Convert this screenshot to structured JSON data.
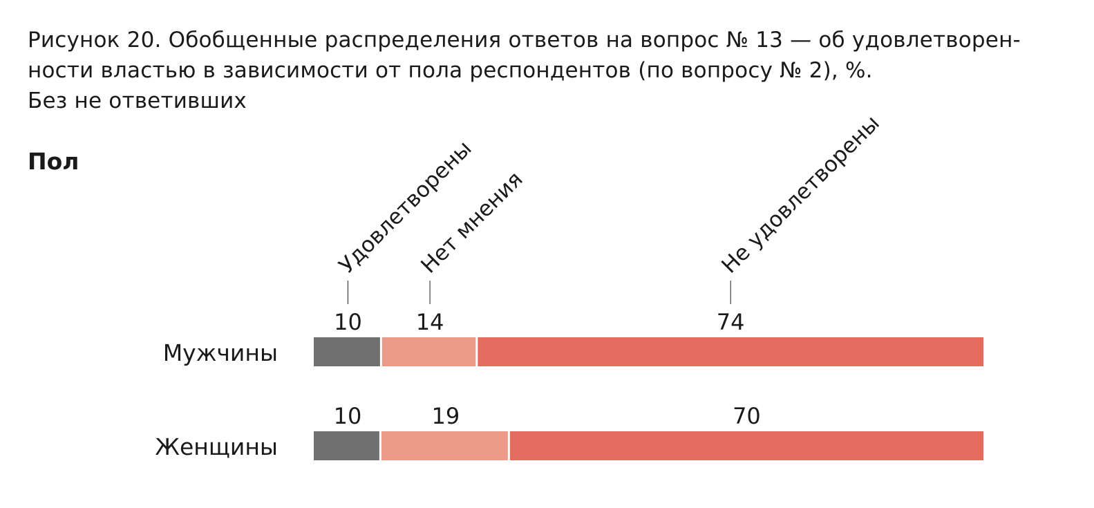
{
  "caption": {
    "line1": "Рисунок 20. Обобщенные распределения ответов на вопрос № 13 — об удовлетворен-",
    "line2": "ности властью в зависимости от пола респондентов (по вопросу № 2), %.",
    "line3": "Без не ответивших"
  },
  "group_label": "Пол",
  "chart_data": {
    "type": "bar",
    "orientation": "horizontal",
    "stacked": true,
    "title": "",
    "xlabel": "",
    "ylabel": "Пол",
    "xlim": [
      0,
      100
    ],
    "grid": false,
    "legend": "top, rotated labels above the first bar",
    "categories": [
      "Мужчины",
      "Женщины"
    ],
    "series": [
      {
        "name": "Удовлетворены",
        "values": [
          10,
          10
        ],
        "color": "#707070"
      },
      {
        "name": "Нет мнения",
        "values": [
          14,
          19
        ],
        "color": "#ec9a89"
      },
      {
        "name": "Не удовлетворены",
        "values": [
          74,
          70
        ],
        "color": "#e56b5f"
      }
    ]
  }
}
